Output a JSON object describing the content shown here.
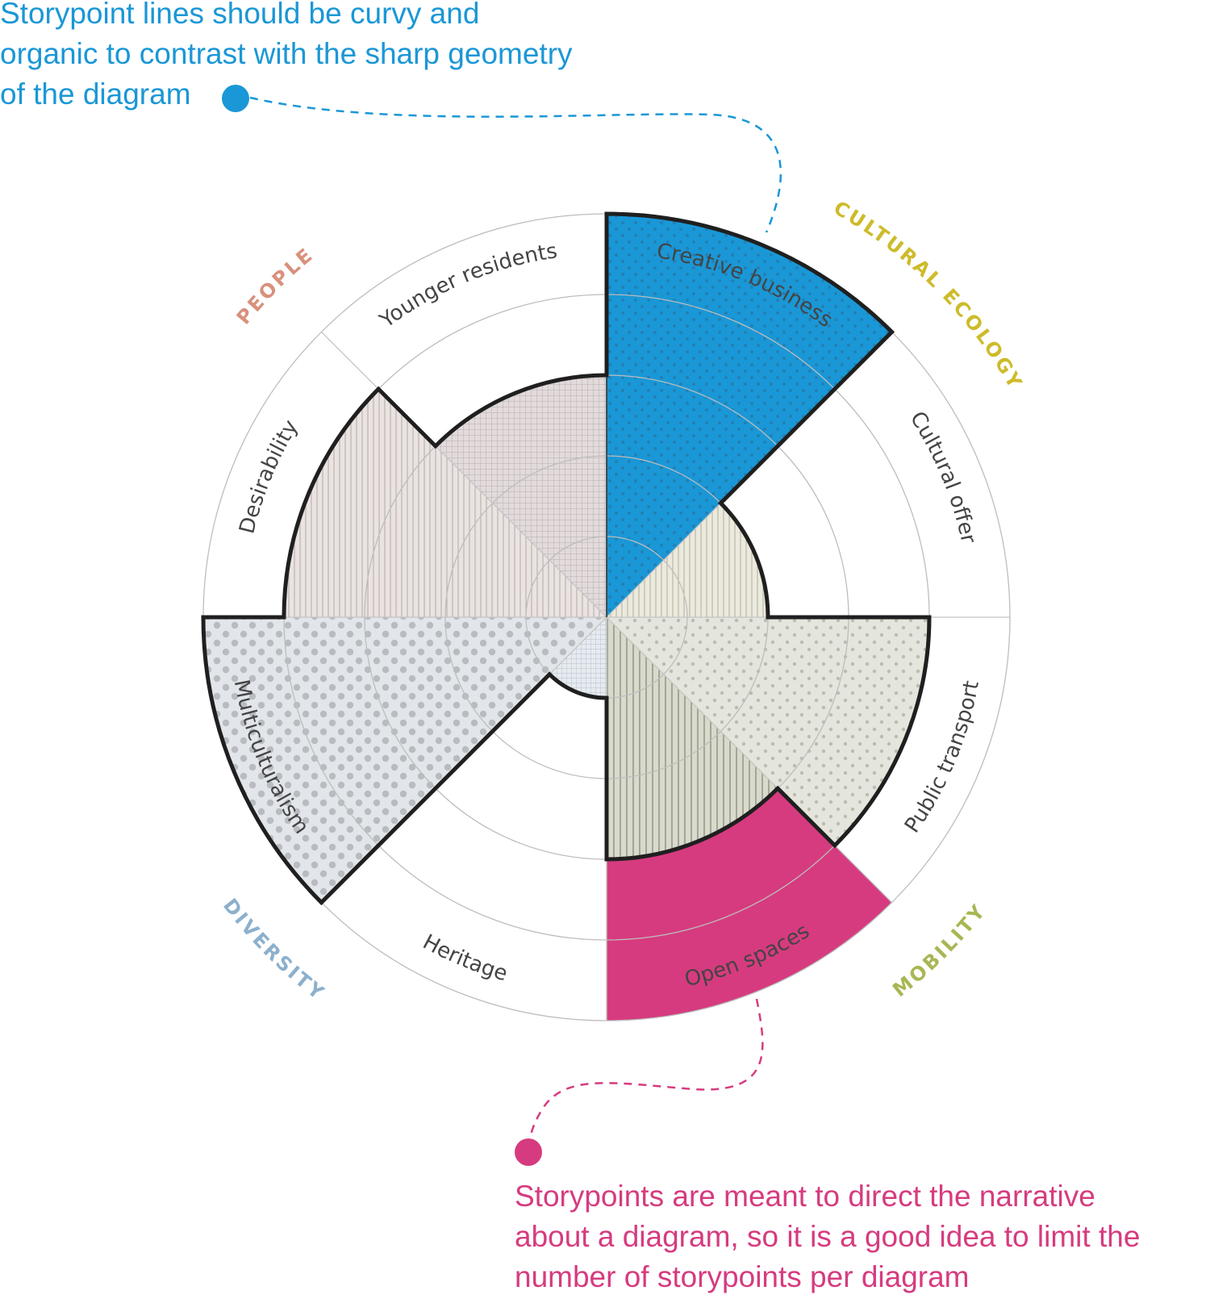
{
  "storypoints": {
    "top": {
      "lines": [
        "Storypoint lines should be curvy and",
        "organic to contrast with the sharp geometry",
        "of the diagram"
      ],
      "color": "#1a97d6"
    },
    "bottom": {
      "lines": [
        "Storypoints are meant to direct the narrative",
        "about a diagram, so it is a good idea to limit the",
        "number of storypoints per diagram"
      ],
      "color": "#d63b7f"
    }
  },
  "chart_data": {
    "type": "polar-area",
    "scale_rings": 5,
    "categories": [
      {
        "name": "PEOPLE",
        "color": "#d9907c"
      },
      {
        "name": "CULTURAL ECOLOGY",
        "color": "#cdbb2a"
      },
      {
        "name": "MOBILITY",
        "color": "#a9b653"
      },
      {
        "name": "DIVERSITY",
        "color": "#8cb0cc"
      }
    ],
    "segments": [
      {
        "label": "Creative business",
        "category": "CULTURAL ECOLOGY",
        "value": 5.0,
        "fill": "#0a87c0",
        "pattern": "dots",
        "highlight": "top"
      },
      {
        "label": "Cultural offer",
        "category": "CULTURAL ECOLOGY",
        "value": 2.0,
        "fill": "#ece9dd",
        "pattern": "vlines"
      },
      {
        "label": "Public transport",
        "category": "MOBILITY",
        "value": 4.0,
        "fill": "#e4e5dc",
        "pattern": "dots"
      },
      {
        "label": "Open spaces",
        "category": "MOBILITY",
        "value": 3.0,
        "fill": "#d8dbcc",
        "pattern": "vlines",
        "highlight": "bottom",
        "highlight_outer": 5.0
      },
      {
        "label": "Heritage",
        "category": "DIVERSITY",
        "value": 1.0,
        "fill": "#e6ebf0",
        "pattern": "grid"
      },
      {
        "label": "Multiculturalism",
        "category": "DIVERSITY",
        "value": 5.0,
        "fill": "#e2e5e9",
        "pattern": "dots"
      },
      {
        "label": "Desirability",
        "category": "PEOPLE",
        "value": 4.0,
        "fill": "#ebe2e2",
        "pattern": "vlines"
      },
      {
        "label": "Younger residents",
        "category": "PEOPLE",
        "value": 3.0,
        "fill": "#e2dadb",
        "pattern": "grid"
      }
    ]
  }
}
